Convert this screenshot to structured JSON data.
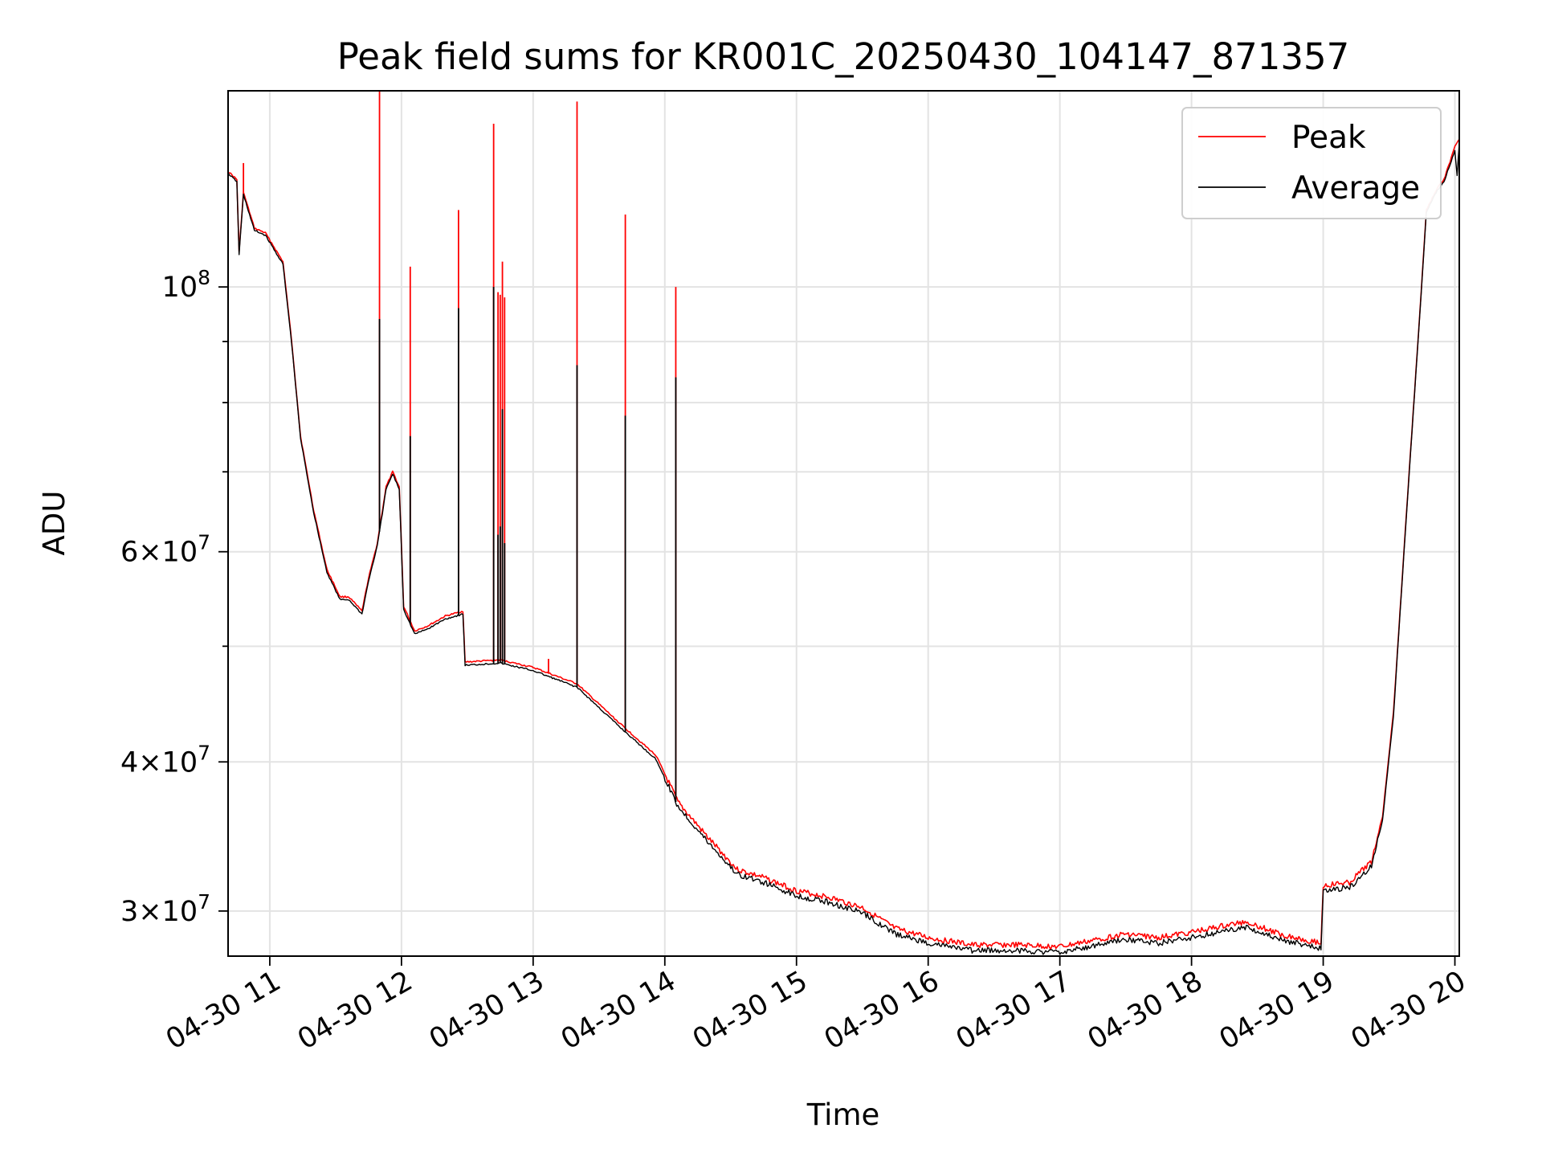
{
  "chart_data": {
    "type": "line",
    "title": "Peak field sums for KR001C_20250430_104147_871357",
    "xlabel": "Time",
    "ylabel": "ADU",
    "yscale": "log",
    "xlim": [
      "2025-04-30T10:41:00",
      "2025-04-30T20:02:00"
    ],
    "ylim": [
      27500000,
      146000000
    ],
    "grid": true,
    "legend": "top-right",
    "x_tick_labels": [
      "04-30 11",
      "04-30 12",
      "04-30 13",
      "04-30 14",
      "04-30 15",
      "04-30 16",
      "04-30 17",
      "04-30 18",
      "04-30 19",
      "04-30 20"
    ],
    "x_tick_times": [
      "2025-04-30T11:00",
      "2025-04-30T12:00",
      "2025-04-30T13:00",
      "2025-04-30T14:00",
      "2025-04-30T15:00",
      "2025-04-30T16:00",
      "2025-04-30T17:00",
      "2025-04-30T18:00",
      "2025-04-30T19:00",
      "2025-04-30T20:00"
    ],
    "y_ticks": [
      {
        "value": 30000000,
        "mantissa": "3",
        "exp": "7"
      },
      {
        "value": 40000000,
        "mantissa": "4",
        "exp": "7"
      },
      {
        "value": 60000000,
        "mantissa": "6",
        "exp": "7"
      },
      {
        "value": 100000000,
        "mantissa": "",
        "exp": "8"
      }
    ],
    "y_minor_ticks": [
      50000000,
      70000000,
      80000000,
      90000000
    ],
    "series": [
      {
        "name": "Peak",
        "color": "#ff0000",
        "base": [
          [
            "2025-04-30T10:41",
            125000000
          ],
          [
            "2025-04-30T10:45",
            123000000
          ],
          [
            "2025-04-30T10:46",
            107000000
          ],
          [
            "2025-04-30T10:48",
            120000000
          ],
          [
            "2025-04-30T10:53",
            112000000
          ],
          [
            "2025-04-30T10:58",
            111000000
          ],
          [
            "2025-04-30T11:06",
            105000000
          ],
          [
            "2025-04-30T11:10",
            90000000
          ],
          [
            "2025-04-30T11:14",
            75000000
          ],
          [
            "2025-04-30T11:20",
            65000000
          ],
          [
            "2025-04-30T11:26",
            58000000
          ],
          [
            "2025-04-30T11:32",
            55000000
          ],
          [
            "2025-04-30T11:36",
            55000000
          ],
          [
            "2025-04-30T11:42",
            53500000
          ],
          [
            "2025-04-30T11:45",
            57000000
          ],
          [
            "2025-04-30T11:49",
            61000000
          ],
          [
            "2025-04-30T11:53",
            68000000
          ],
          [
            "2025-04-30T11:56",
            70000000
          ],
          [
            "2025-04-30T11:59",
            68000000
          ],
          [
            "2025-04-30T12:01",
            54000000
          ],
          [
            "2025-04-30T12:06",
            51500000
          ],
          [
            "2025-04-30T12:12",
            52000000
          ],
          [
            "2025-04-30T12:20",
            53000000
          ],
          [
            "2025-04-30T12:28",
            53500000
          ],
          [
            "2025-04-30T12:29",
            48500000
          ],
          [
            "2025-04-30T12:45",
            48700000
          ],
          [
            "2025-04-30T13:00",
            48000000
          ],
          [
            "2025-04-30T13:20",
            46500000
          ],
          [
            "2025-04-30T13:40",
            43000000
          ],
          [
            "2025-04-30T13:56",
            40500000
          ],
          [
            "2025-04-30T14:06",
            37000000
          ],
          [
            "2025-04-30T14:20",
            34500000
          ],
          [
            "2025-04-30T14:33",
            32500000
          ],
          [
            "2025-04-30T14:45",
            32000000
          ],
          [
            "2025-04-30T15:00",
            31200000
          ],
          [
            "2025-04-30T15:15",
            30800000
          ],
          [
            "2025-04-30T15:30",
            30200000
          ],
          [
            "2025-04-30T15:45",
            29000000
          ],
          [
            "2025-04-30T16:00",
            28500000
          ],
          [
            "2025-04-30T16:20",
            28100000
          ],
          [
            "2025-04-30T16:40",
            28100000
          ],
          [
            "2025-04-30T17:00",
            28000000
          ],
          [
            "2025-04-30T17:30",
            28700000
          ],
          [
            "2025-04-30T17:45",
            28500000
          ],
          [
            "2025-04-30T18:00",
            28800000
          ],
          [
            "2025-04-30T18:25",
            29400000
          ],
          [
            "2025-04-30T18:40",
            28700000
          ],
          [
            "2025-04-30T18:59",
            28200000
          ],
          [
            "2025-04-30T19:00",
            31500000
          ],
          [
            "2025-04-30T19:12",
            31700000
          ],
          [
            "2025-04-30T19:22",
            33000000
          ],
          [
            "2025-04-30T19:27",
            36000000
          ],
          [
            "2025-04-30T19:32",
            44000000
          ],
          [
            "2025-04-30T19:38",
            65000000
          ],
          [
            "2025-04-30T19:44",
            95000000
          ],
          [
            "2025-04-30T19:47",
            116000000
          ],
          [
            "2025-04-30T19:52",
            121000000
          ],
          [
            "2025-04-30T19:55",
            123000000
          ],
          [
            "2025-04-30T20:00",
            131000000
          ],
          [
            "2025-04-30T20:02",
            133000000
          ]
        ],
        "spikes": [
          [
            "2025-04-30T10:48",
            127000000
          ],
          [
            "2025-04-30T11:50",
            146000000
          ],
          [
            "2025-04-30T12:04",
            104000000
          ],
          [
            "2025-04-30T12:26",
            116000000
          ],
          [
            "2025-04-30T12:42",
            137000000
          ],
          [
            "2025-04-30T12:44",
            99000000
          ],
          [
            "2025-04-30T12:45",
            98500000
          ],
          [
            "2025-04-30T12:46",
            105000000
          ],
          [
            "2025-04-30T12:47",
            98000000
          ],
          [
            "2025-04-30T13:07",
            48800000
          ],
          [
            "2025-04-30T13:20",
            143000000
          ],
          [
            "2025-04-30T13:42",
            115000000
          ],
          [
            "2025-04-30T14:05",
            100000000
          ]
        ]
      },
      {
        "name": "Average",
        "color": "#000000",
        "base": [
          [
            "2025-04-30T10:41",
            124500000
          ],
          [
            "2025-04-30T10:45",
            122500000
          ],
          [
            "2025-04-30T10:46",
            106500000
          ],
          [
            "2025-04-30T10:48",
            119500000
          ],
          [
            "2025-04-30T10:53",
            111500000
          ],
          [
            "2025-04-30T10:58",
            110500000
          ],
          [
            "2025-04-30T11:06",
            104500000
          ],
          [
            "2025-04-30T11:10",
            89600000
          ],
          [
            "2025-04-30T11:14",
            74700000
          ],
          [
            "2025-04-30T11:20",
            64700000
          ],
          [
            "2025-04-30T11:26",
            57700000
          ],
          [
            "2025-04-30T11:32",
            54700000
          ],
          [
            "2025-04-30T11:36",
            54700000
          ],
          [
            "2025-04-30T11:42",
            53200000
          ],
          [
            "2025-04-30T11:45",
            56700000
          ],
          [
            "2025-04-30T11:49",
            60700000
          ],
          [
            "2025-04-30T11:53",
            67700000
          ],
          [
            "2025-04-30T11:56",
            69700000
          ],
          [
            "2025-04-30T11:59",
            67700000
          ],
          [
            "2025-04-30T12:01",
            53700000
          ],
          [
            "2025-04-30T12:06",
            51200000
          ],
          [
            "2025-04-30T12:12",
            51700000
          ],
          [
            "2025-04-30T12:20",
            52700000
          ],
          [
            "2025-04-30T12:28",
            53200000
          ],
          [
            "2025-04-30T12:29",
            48200000
          ],
          [
            "2025-04-30T12:45",
            48400000
          ],
          [
            "2025-04-30T13:00",
            47700000
          ],
          [
            "2025-04-30T13:20",
            46200000
          ],
          [
            "2025-04-30T13:40",
            42700000
          ],
          [
            "2025-04-30T13:56",
            40200000
          ],
          [
            "2025-04-30T14:06",
            36700000
          ],
          [
            "2025-04-30T14:20",
            34200000
          ],
          [
            "2025-04-30T14:33",
            32200000
          ],
          [
            "2025-04-30T14:45",
            31700000
          ],
          [
            "2025-04-30T15:00",
            30900000
          ],
          [
            "2025-04-30T15:15",
            30500000
          ],
          [
            "2025-04-30T15:30",
            29900000
          ],
          [
            "2025-04-30T15:45",
            28700000
          ],
          [
            "2025-04-30T16:00",
            28200000
          ],
          [
            "2025-04-30T16:20",
            27800000
          ],
          [
            "2025-04-30T16:40",
            27800000
          ],
          [
            "2025-04-30T17:00",
            27700000
          ],
          [
            "2025-04-30T17:30",
            28400000
          ],
          [
            "2025-04-30T17:45",
            28200000
          ],
          [
            "2025-04-30T18:00",
            28500000
          ],
          [
            "2025-04-30T18:25",
            29100000
          ],
          [
            "2025-04-30T18:40",
            28400000
          ],
          [
            "2025-04-30T18:59",
            27900000
          ],
          [
            "2025-04-30T19:00",
            31200000
          ],
          [
            "2025-04-30T19:12",
            31400000
          ],
          [
            "2025-04-30T19:22",
            32700000
          ],
          [
            "2025-04-30T19:27",
            35700000
          ],
          [
            "2025-04-30T19:32",
            43700000
          ],
          [
            "2025-04-30T19:38",
            64700000
          ],
          [
            "2025-04-30T19:44",
            94700000
          ],
          [
            "2025-04-30T19:47",
            115500000
          ],
          [
            "2025-04-30T19:52",
            120500000
          ],
          [
            "2025-04-30T19:55",
            122500000
          ],
          [
            "2025-04-30T20:00",
            130000000
          ],
          [
            "2025-04-30T20:01",
            124000000
          ],
          [
            "2025-04-30T20:02",
            132000000
          ]
        ],
        "spikes": [
          [
            "2025-04-30T11:50",
            94000000
          ],
          [
            "2025-04-30T12:04",
            75000000
          ],
          [
            "2025-04-30T12:26",
            96000000
          ],
          [
            "2025-04-30T12:42",
            100000000
          ],
          [
            "2025-04-30T12:44",
            62000000
          ],
          [
            "2025-04-30T12:45",
            63000000
          ],
          [
            "2025-04-30T12:46",
            79000000
          ],
          [
            "2025-04-30T12:47",
            61000000
          ],
          [
            "2025-04-30T13:20",
            86000000
          ],
          [
            "2025-04-30T13:42",
            78000000
          ],
          [
            "2025-04-30T14:05",
            84000000
          ]
        ]
      }
    ]
  }
}
